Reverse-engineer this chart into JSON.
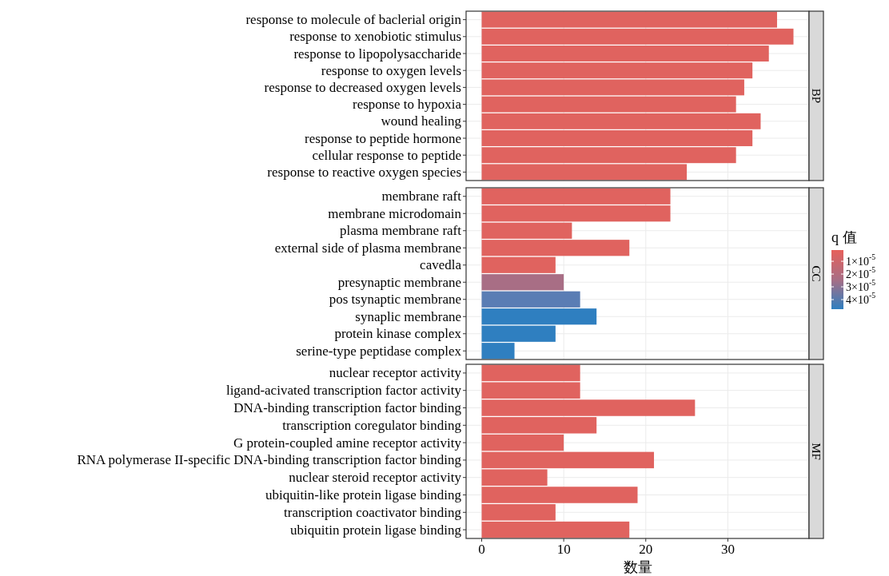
{
  "chart_data": [
    {
      "type": "bar",
      "orientation": "horizontal",
      "title": "BP",
      "categories": [
        "response to molecule of baclerial origin",
        "response to xenobiotic stimulus",
        "response to lipopolysaccharide",
        "response to oxygen levels",
        "response to decreased oxygen levels",
        "response to hypoxia",
        "wound healing",
        "response to peptide hormone",
        "cellular response to peptide",
        "response to reactive oxygen species"
      ],
      "values": [
        36,
        38,
        35,
        33,
        32,
        31,
        34,
        33,
        31,
        25
      ],
      "colors": [
        "#e0635f",
        "#e0635f",
        "#e0635f",
        "#e0635f",
        "#e0635f",
        "#e0635f",
        "#e0635f",
        "#e0635f",
        "#e0635f",
        "#e0635f"
      ],
      "xlim": [
        -1.9,
        39.9
      ],
      "xticks": [
        0,
        10,
        20,
        30
      ],
      "grid": true,
      "tick_labels": "y"
    },
    {
      "type": "bar",
      "orientation": "horizontal",
      "title": "CC",
      "categories": [
        "membrane raft",
        "membrane microdomain",
        "plasma membrane raft",
        "external side of plasma membrane",
        "cavedla",
        "presynaptic membrane",
        "pos tsynaptic membrane",
        "synaplic membrane",
        "protein kinase complex",
        "serine-type peptidase complex"
      ],
      "values": [
        23,
        23,
        11,
        18,
        9,
        10,
        12,
        14,
        9,
        4
      ],
      "colors": [
        "#e0635f",
        "#e0635f",
        "#e0635f",
        "#e0635f",
        "#e0635f",
        "#a86e85",
        "#5a7db4",
        "#2f7fc0",
        "#2f7fc0",
        "#2f7fc0"
      ],
      "xlim": [
        -1.9,
        39.9
      ],
      "xticks": [
        0,
        10,
        20,
        30
      ],
      "grid": true,
      "tick_labels": "y",
      "clabel": "q 值",
      "clim": [
        1.2e-06,
        4.75e-05
      ],
      "cticks": [
        {
          "value": 1e-05,
          "label": "1×10$^{-5}$"
        },
        {
          "value": 2e-05,
          "label": "2×10$^{-5}$"
        },
        {
          "value": 3e-05,
          "label": "3×10$^{-5}$"
        },
        {
          "value": 4e-05,
          "label": "4×10$^{-5}$"
        }
      ]
    },
    {
      "type": "bar",
      "orientation": "horizontal",
      "title": "MF",
      "xlabel": "数量",
      "categories": [
        "nuclear receptor activity",
        "ligand-acivated transcription factor activity",
        "DNA-binding transcription factor binding",
        "transcription coregulator binding",
        "G protein-coupled amine receptor activity",
        "RNA polymerase II-specific DNA-binding transcription factor binding",
        "nuclear steroid receptor activity",
        "ubiquitin-like protein ligase binding",
        "transcription coactivator binding",
        "ubiquitin protein ligase binding"
      ],
      "values": [
        12,
        12,
        26,
        14,
        10,
        21,
        8,
        19,
        9,
        18
      ],
      "colors": [
        "#e0635f",
        "#e0635f",
        "#e0635f",
        "#e0635f",
        "#e0635f",
        "#e0635f",
        "#e0635f",
        "#e0635f",
        "#e0635f",
        "#e0635f"
      ],
      "xlim": [
        -1.9,
        39.9
      ],
      "xticks": [
        0,
        10,
        20,
        30
      ],
      "grid": true
    }
  ]
}
